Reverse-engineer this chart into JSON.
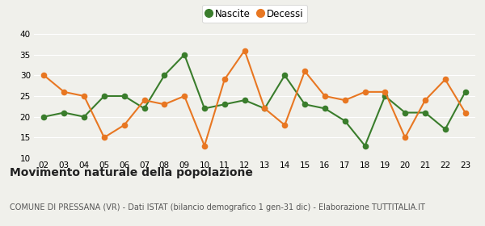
{
  "years": [
    "02",
    "03",
    "04",
    "05",
    "06",
    "07",
    "08",
    "09",
    "10",
    "11",
    "12",
    "13",
    "14",
    "15",
    "16",
    "17",
    "18",
    "19",
    "20",
    "21",
    "22",
    "23"
  ],
  "nascite": [
    20,
    21,
    20,
    25,
    25,
    22,
    30,
    35,
    22,
    23,
    24,
    22,
    30,
    23,
    22,
    19,
    13,
    25,
    21,
    21,
    17,
    26
  ],
  "decessi": [
    30,
    26,
    25,
    15,
    18,
    24,
    23,
    25,
    13,
    29,
    36,
    22,
    18,
    31,
    25,
    24,
    26,
    26,
    15,
    24,
    29,
    21
  ],
  "nascite_color": "#3a7d2c",
  "decessi_color": "#e87722",
  "background_color": "#f0f0eb",
  "grid_color": "#ffffff",
  "ylim": [
    10,
    40
  ],
  "yticks": [
    10,
    15,
    20,
    25,
    30,
    35,
    40
  ],
  "title": "Movimento naturale della popolazione",
  "subtitle": "COMUNE DI PRESSANA (VR) - Dati ISTAT (bilancio demografico 1 gen-31 dic) - Elaborazione TUTTITALIA.IT",
  "legend_nascite": "Nascite",
  "legend_decessi": "Decessi",
  "title_fontsize": 10,
  "subtitle_fontsize": 7,
  "tick_fontsize": 7.5,
  "marker_size": 4.5,
  "linewidth": 1.5
}
